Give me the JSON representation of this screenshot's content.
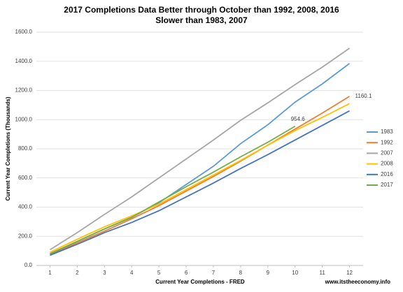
{
  "chart_data": {
    "type": "line",
    "title": "2017 Completions Data Better through October  than 1992, 2008, 2016",
    "subtitle": "Slower than 1983, 2007",
    "x_label": "Current Year Completions - FRED",
    "y_label": "Current Year Completions (Thousands)",
    "source": "www.itstheeconomy.info",
    "x": [
      1,
      2,
      3,
      4,
      5,
      6,
      7,
      8,
      9,
      10,
      11,
      12
    ],
    "xlim": [
      0.5,
      12.5
    ],
    "xticks": [
      1,
      2,
      3,
      4,
      5,
      6,
      7,
      8,
      9,
      10,
      11,
      12
    ],
    "ylim": [
      0,
      1600
    ],
    "yticks": [
      {
        "value": 0,
        "label": "0.0"
      },
      {
        "value": 200,
        "label": "200.0"
      },
      {
        "value": 400,
        "label": "400.0"
      },
      {
        "value": 600,
        "label": "600.0"
      },
      {
        "value": 800,
        "label": "800.0"
      },
      {
        "value": 1000,
        "label": "1000.0"
      },
      {
        "value": 1200,
        "label": "1200.0"
      },
      {
        "value": 1400,
        "label": "1400.0"
      },
      {
        "value": 1600,
        "label": "1600.0"
      }
    ],
    "grid": true,
    "legend": "right",
    "series": [
      {
        "name": "1983",
        "color": "#5b9bd5",
        "values": [
          80,
          165,
          250,
          330,
          430,
          555,
          680,
          835,
          965,
          1120,
          1245,
          1385
        ]
      },
      {
        "name": "1992",
        "color": "#ed7d31",
        "values": [
          75,
          155,
          235,
          320,
          410,
          510,
          610,
          715,
          825,
          935,
          1045,
          1160.1
        ],
        "value_labels": [
          null,
          null,
          null,
          null,
          null,
          null,
          null,
          null,
          null,
          null,
          null,
          "1160.1"
        ]
      },
      {
        "name": "2007",
        "color": "#a5a5a5",
        "values": [
          108,
          225,
          350,
          470,
          600,
          730,
          860,
          995,
          1115,
          1240,
          1360,
          1490
        ]
      },
      {
        "name": "2008",
        "color": "#ffc000",
        "values": [
          90,
          180,
          265,
          340,
          420,
          520,
          620,
          720,
          825,
          925,
          1015,
          1110
        ]
      },
      {
        "name": "2016",
        "color": "#4472c4",
        "values": [
          70,
          145,
          225,
          295,
          375,
          470,
          565,
          665,
          760,
          860,
          960,
          1060
        ]
      },
      {
        "name": "2017",
        "color": "#70ad47",
        "values": [
          80,
          165,
          250,
          330,
          435,
          540,
          640,
          745,
          845,
          954.6,
          null,
          null
        ],
        "value_labels": [
          null,
          null,
          null,
          null,
          null,
          null,
          null,
          null,
          null,
          "954.6",
          null,
          null
        ]
      }
    ]
  }
}
